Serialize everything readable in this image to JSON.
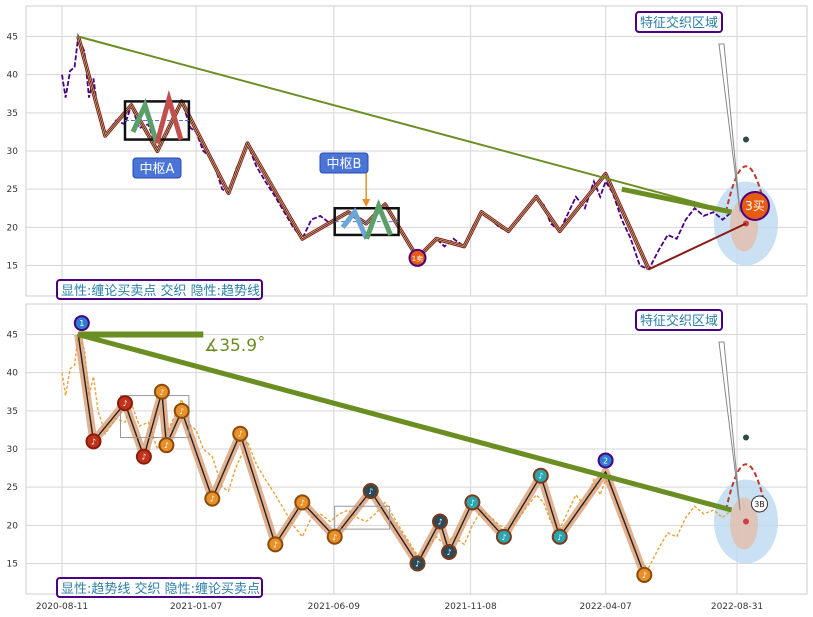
{
  "chart_data": [
    {
      "type": "line",
      "panel": "top",
      "ylim": [
        11,
        49
      ],
      "yticks": [
        15,
        20,
        25,
        30,
        35,
        40,
        45
      ],
      "grid": true,
      "colors": {
        "price": "#4b0082",
        "pen": "#f0c080",
        "trend": "#6b8e23",
        "box_pen_a": [
          "#5aa06a",
          "#c0504d"
        ],
        "box_pen_b": [
          "#6aa6d6",
          "#5aa06a"
        ],
        "area": "#bcd9f0"
      },
      "price_line": [
        [
          "2020-08-11",
          40.0
        ],
        [
          "2020-08-15",
          37.0
        ],
        [
          "2020-08-20",
          40.5
        ],
        [
          "2020-08-25",
          41.0
        ],
        [
          "2020-08-29",
          45.0
        ],
        [
          "2020-09-05",
          43.0
        ],
        [
          "2020-09-10",
          37.0
        ],
        [
          "2020-09-15",
          39.5
        ],
        [
          "2020-09-20",
          35.0
        ],
        [
          "2020-09-28",
          32.0
        ],
        [
          "2020-10-10",
          34.0
        ],
        [
          "2020-10-20",
          33.5
        ],
        [
          "2020-10-27",
          36.0
        ],
        [
          "2020-11-05",
          33.0
        ],
        [
          "2020-11-15",
          33.5
        ],
        [
          "2020-11-25",
          30.0
        ],
        [
          "2020-12-05",
          32.0
        ],
        [
          "2020-12-15",
          34.5
        ],
        [
          "2020-12-22",
          36.5
        ],
        [
          "2021-01-01",
          33.0
        ],
        [
          "2021-01-07",
          32.5
        ],
        [
          "2021-01-15",
          30.0
        ],
        [
          "2021-01-25",
          29.0
        ],
        [
          "2021-02-05",
          25.0
        ],
        [
          "2021-02-12",
          24.5
        ],
        [
          "2021-02-20",
          27.5
        ],
        [
          "2021-03-05",
          31.0
        ],
        [
          "2021-03-15",
          28.0
        ],
        [
          "2021-03-25",
          26.0
        ],
        [
          "2021-04-05",
          24.0
        ],
        [
          "2021-04-15",
          22.0
        ],
        [
          "2021-04-25",
          20.0
        ],
        [
          "2021-05-05",
          18.5
        ],
        [
          "2021-05-15",
          21.0
        ],
        [
          "2021-05-25",
          21.5
        ],
        [
          "2021-06-05",
          20.5
        ],
        [
          "2021-06-15",
          21.5
        ],
        [
          "2021-06-25",
          22.0
        ],
        [
          "2021-07-05",
          21.0
        ],
        [
          "2021-07-15",
          20.5
        ],
        [
          "2021-07-25",
          21.5
        ],
        [
          "2021-08-05",
          23.0
        ],
        [
          "2021-08-15",
          21.0
        ],
        [
          "2021-08-25",
          19.0
        ],
        [
          "2021-09-05",
          17.0
        ],
        [
          "2021-09-10",
          16.0
        ],
        [
          "2021-09-20",
          17.0
        ],
        [
          "2021-10-01",
          18.5
        ],
        [
          "2021-10-10",
          17.5
        ],
        [
          "2021-10-20",
          18.5
        ],
        [
          "2021-11-01",
          17.5
        ],
        [
          "2021-11-10",
          20.0
        ],
        [
          "2021-11-20",
          22.0
        ],
        [
          "2021-12-01",
          21.0
        ],
        [
          "2021-12-10",
          20.0
        ],
        [
          "2021-12-20",
          19.5
        ],
        [
          "2022-01-01",
          21.0
        ],
        [
          "2022-01-10",
          22.5
        ],
        [
          "2022-01-20",
          24.0
        ],
        [
          "2022-01-28",
          23.0
        ],
        [
          "2022-02-05",
          20.5
        ],
        [
          "2022-02-15",
          19.5
        ],
        [
          "2022-02-25",
          22.0
        ],
        [
          "2022-03-05",
          24.0
        ],
        [
          "2022-03-15",
          22.5
        ],
        [
          "2022-03-25",
          26.0
        ],
        [
          "2022-04-01",
          24.0
        ],
        [
          "2022-04-07",
          26.0
        ],
        [
          "2022-04-15",
          24.5
        ],
        [
          "2022-04-25",
          21.0
        ],
        [
          "2022-05-05",
          18.5
        ],
        [
          "2022-05-15",
          15.0
        ],
        [
          "2022-05-25",
          14.5
        ],
        [
          "2022-06-05",
          17.0
        ],
        [
          "2022-06-15",
          19.0
        ],
        [
          "2022-06-25",
          18.5
        ],
        [
          "2022-07-05",
          21.0
        ],
        [
          "2022-07-15",
          22.5
        ],
        [
          "2022-07-25",
          21.5
        ],
        [
          "2022-08-05",
          22.0
        ],
        [
          "2022-08-15",
          21.0
        ],
        [
          "2022-08-25",
          22.0
        ]
      ],
      "pen_line": [
        [
          "2020-08-29",
          45.0
        ],
        [
          "2020-09-28",
          32.0
        ],
        [
          "2020-10-27",
          36.0
        ],
        [
          "2020-11-25",
          30.0
        ],
        [
          "2020-12-22",
          36.5
        ],
        [
          "2021-02-12",
          24.5
        ],
        [
          "2021-03-05",
          31.0
        ],
        [
          "2021-05-05",
          18.5
        ],
        [
          "2021-06-25",
          22.0
        ],
        [
          "2021-07-15",
          20.5
        ],
        [
          "2021-08-05",
          23.0
        ],
        [
          "2021-09-10",
          16.0
        ],
        [
          "2021-10-01",
          18.5
        ],
        [
          "2021-11-01",
          17.5
        ],
        [
          "2021-11-20",
          22.0
        ],
        [
          "2021-12-20",
          19.5
        ],
        [
          "2022-01-20",
          24.0
        ],
        [
          "2022-02-15",
          19.5
        ],
        [
          "2022-04-07",
          27.0
        ],
        [
          "2022-05-25",
          14.5
        ]
      ],
      "black_line": [
        [
          "2020-08-29",
          45.0
        ],
        [
          "2020-09-28",
          32.0
        ],
        [
          "2020-10-27",
          36.0
        ],
        [
          "2020-11-25",
          30.0
        ],
        [
          "2020-12-22",
          36.5
        ],
        [
          "2021-02-12",
          24.5
        ],
        [
          "2021-03-05",
          31.0
        ],
        [
          "2021-05-05",
          18.5
        ],
        [
          "2021-06-25",
          22.0
        ],
        [
          "2021-07-15",
          20.5
        ],
        [
          "2021-08-05",
          23.0
        ],
        [
          "2021-09-10",
          16.0
        ],
        [
          "2021-10-01",
          18.5
        ],
        [
          "2021-11-01",
          17.5
        ],
        [
          "2021-11-20",
          22.0
        ],
        [
          "2021-12-20",
          19.5
        ],
        [
          "2022-01-20",
          24.0
        ],
        [
          "2022-02-15",
          19.5
        ],
        [
          "2022-04-07",
          27.0
        ],
        [
          "2022-05-25",
          14.5
        ]
      ],
      "trend_lines": [
        [
          [
            "2020-08-29",
            45.0
          ],
          [
            "2022-08-25",
            22.0
          ]
        ],
        [
          [
            "2022-05-25",
            14.5
          ],
          [
            "2022-09-10",
            20.5
          ]
        ]
      ],
      "bold_segment": [
        [
          "2022-04-25",
          25.0
        ],
        [
          "2022-08-25",
          22.0
        ]
      ],
      "zhongshu_boxes": [
        {
          "x0": "2020-10-20",
          "x1": "2020-12-30",
          "y0": 31.5,
          "y1": 36.5,
          "label": "中枢A"
        },
        {
          "x0": "2021-06-10",
          "x1": "2021-08-20",
          "y0": 19.0,
          "y1": 22.5,
          "label": "中枢B"
        }
      ],
      "markers": [
        {
          "x": "2021-09-10",
          "y": 16.0,
          "label": "1卖"
        },
        {
          "x": "2022-09-20",
          "y": 22.8,
          "label": "3买"
        }
      ],
      "annotation": "特征交织区域",
      "legend": "显性:缠论买卖点 交织 隐性:趋势线"
    },
    {
      "type": "line",
      "panel": "bottom",
      "ylim": [
        11,
        49
      ],
      "yticks": [
        15,
        20,
        25,
        30,
        35,
        40,
        45
      ],
      "xticks": [
        "2020-08-11",
        "2021-01-07",
        "2021-06-09",
        "2021-11-08",
        "2022-04-07",
        "2022-08-31"
      ],
      "grid": true,
      "colors": {
        "price": "#e8a33a",
        "pen": "#d9976a",
        "trend": "#6b8e23",
        "area": "#bcd9f0"
      },
      "price_line": [
        [
          "2020-08-11",
          40.0
        ],
        [
          "2020-08-15",
          37.0
        ],
        [
          "2020-08-20",
          40.5
        ],
        [
          "2020-08-25",
          41.0
        ],
        [
          "2020-08-29",
          45.0
        ],
        [
          "2020-09-05",
          43.0
        ],
        [
          "2020-09-10",
          37.0
        ],
        [
          "2020-09-15",
          39.5
        ],
        [
          "2020-09-20",
          35.0
        ],
        [
          "2020-09-28",
          32.0
        ],
        [
          "2020-10-10",
          34.0
        ],
        [
          "2020-10-20",
          33.5
        ],
        [
          "2020-10-27",
          36.0
        ],
        [
          "2020-11-05",
          33.0
        ],
        [
          "2020-11-15",
          33.5
        ],
        [
          "2020-11-25",
          30.0
        ],
        [
          "2020-12-05",
          32.0
        ],
        [
          "2020-12-15",
          34.5
        ],
        [
          "2020-12-22",
          36.5
        ],
        [
          "2021-01-01",
          33.0
        ],
        [
          "2021-01-07",
          32.5
        ],
        [
          "2021-01-15",
          30.0
        ],
        [
          "2021-01-25",
          29.0
        ],
        [
          "2021-02-05",
          25.0
        ],
        [
          "2021-02-12",
          24.5
        ],
        [
          "2021-02-20",
          27.5
        ],
        [
          "2021-03-05",
          31.0
        ],
        [
          "2021-03-15",
          28.0
        ],
        [
          "2021-03-25",
          26.0
        ],
        [
          "2021-04-05",
          24.0
        ],
        [
          "2021-04-15",
          22.0
        ],
        [
          "2021-04-25",
          20.0
        ],
        [
          "2021-05-05",
          18.5
        ],
        [
          "2021-05-15",
          21.0
        ],
        [
          "2021-05-25",
          21.5
        ],
        [
          "2021-06-05",
          20.5
        ],
        [
          "2021-06-15",
          21.5
        ],
        [
          "2021-06-25",
          22.0
        ],
        [
          "2021-07-05",
          21.0
        ],
        [
          "2021-07-15",
          20.5
        ],
        [
          "2021-07-25",
          21.5
        ],
        [
          "2021-08-05",
          23.0
        ],
        [
          "2021-08-15",
          21.0
        ],
        [
          "2021-08-25",
          19.0
        ],
        [
          "2021-09-05",
          17.0
        ],
        [
          "2021-09-10",
          16.0
        ],
        [
          "2021-09-20",
          17.0
        ],
        [
          "2021-10-01",
          18.5
        ],
        [
          "2021-10-10",
          17.5
        ],
        [
          "2021-10-20",
          18.5
        ],
        [
          "2021-11-01",
          17.5
        ],
        [
          "2021-11-10",
          20.0
        ],
        [
          "2021-11-20",
          22.0
        ],
        [
          "2021-12-01",
          21.0
        ],
        [
          "2021-12-10",
          20.0
        ],
        [
          "2021-12-20",
          19.5
        ],
        [
          "2022-01-01",
          21.0
        ],
        [
          "2022-01-10",
          22.5
        ],
        [
          "2022-01-20",
          24.0
        ],
        [
          "2022-01-28",
          23.0
        ],
        [
          "2022-02-05",
          20.5
        ],
        [
          "2022-02-15",
          19.5
        ],
        [
          "2022-02-25",
          22.0
        ],
        [
          "2022-03-05",
          24.0
        ],
        [
          "2022-03-15",
          22.5
        ],
        [
          "2022-03-25",
          26.0
        ],
        [
          "2022-04-01",
          24.0
        ],
        [
          "2022-04-07",
          26.0
        ],
        [
          "2022-04-15",
          24.5
        ],
        [
          "2022-04-25",
          21.0
        ],
        [
          "2022-05-05",
          18.5
        ],
        [
          "2022-05-15",
          15.0
        ],
        [
          "2022-05-25",
          14.5
        ],
        [
          "2022-06-05",
          17.0
        ],
        [
          "2022-06-15",
          19.0
        ],
        [
          "2022-06-25",
          18.5
        ],
        [
          "2022-07-05",
          21.0
        ],
        [
          "2022-07-15",
          22.5
        ],
        [
          "2022-07-25",
          21.5
        ],
        [
          "2022-08-05",
          22.0
        ],
        [
          "2022-08-15",
          21.0
        ],
        [
          "2022-08-25",
          22.0
        ]
      ],
      "pen_line": [
        [
          "2020-08-29",
          45.0
        ],
        [
          "2020-09-15",
          31.0
        ],
        [
          "2020-10-20",
          36.0
        ],
        [
          "2020-11-10",
          29.0
        ],
        [
          "2020-11-30",
          37.5
        ],
        [
          "2020-12-05",
          30.5
        ],
        [
          "2020-12-22",
          35.0
        ],
        [
          "2021-01-25",
          23.5
        ],
        [
          "2021-02-25",
          32.0
        ],
        [
          "2021-04-05",
          17.5
        ],
        [
          "2021-05-05",
          23.0
        ],
        [
          "2021-06-10",
          18.5
        ],
        [
          "2021-07-20",
          24.5
        ],
        [
          "2021-09-10",
          15.0
        ],
        [
          "2021-10-05",
          20.5
        ],
        [
          "2021-10-15",
          16.5
        ],
        [
          "2021-11-10",
          23.0
        ],
        [
          "2021-12-15",
          18.5
        ],
        [
          "2022-01-25",
          26.5
        ],
        [
          "2022-02-15",
          18.5
        ],
        [
          "2022-04-07",
          27.0
        ],
        [
          "2022-05-20",
          13.5
        ]
      ],
      "note_markers": [
        [
          "2020-09-15",
          31.0,
          "red"
        ],
        [
          "2020-10-20",
          36.0,
          "red"
        ],
        [
          "2020-11-10",
          29.0,
          "red"
        ],
        [
          "2020-11-30",
          37.5,
          "orange"
        ],
        [
          "2020-12-05",
          30.5,
          "orange"
        ],
        [
          "2020-12-22",
          35.0,
          "orange"
        ],
        [
          "2021-01-25",
          23.5,
          "orange"
        ],
        [
          "2021-02-25",
          32.0,
          "orange"
        ],
        [
          "2021-04-05",
          17.5,
          "orange"
        ],
        [
          "2021-05-05",
          23.0,
          "orange"
        ],
        [
          "2021-06-10",
          18.5,
          "orange"
        ],
        [
          "2021-07-20",
          24.5,
          "dark"
        ],
        [
          "2021-09-10",
          15.0,
          "dark"
        ],
        [
          "2021-10-05",
          20.5,
          "dark"
        ],
        [
          "2021-10-15",
          16.5,
          "dark"
        ],
        [
          "2021-11-10",
          23.0,
          "teal"
        ],
        [
          "2021-12-15",
          18.5,
          "teal"
        ],
        [
          "2022-01-25",
          26.5,
          "teal"
        ],
        [
          "2022-02-15",
          18.5,
          "teal"
        ],
        [
          "2022-05-20",
          13.5,
          "orange"
        ]
      ],
      "trend_lines": [
        [
          [
            "2020-08-29",
            45.0
          ],
          [
            "2022-08-25",
            22.0
          ]
        ],
        [
          [
            "2020-08-29",
            45.0
          ],
          [
            "2021-01-15",
            45.0
          ]
        ]
      ],
      "angle_label": "∡35.9˚",
      "bold_segment": [
        [
          "2020-08-29",
          45.0
        ],
        [
          "2022-08-25",
          22.0
        ]
      ],
      "markers": [
        {
          "x": "2020-09-02",
          "y": 46.5,
          "label": "1"
        },
        {
          "x": "2022-04-07",
          "y": 28.5,
          "label": "2"
        },
        {
          "x": "2022-09-25",
          "y": 22.8,
          "label": "3B"
        }
      ],
      "annotation": "特征交织区域",
      "legend": "显性:趋势线 交织 隐性:缠论买卖点"
    }
  ]
}
